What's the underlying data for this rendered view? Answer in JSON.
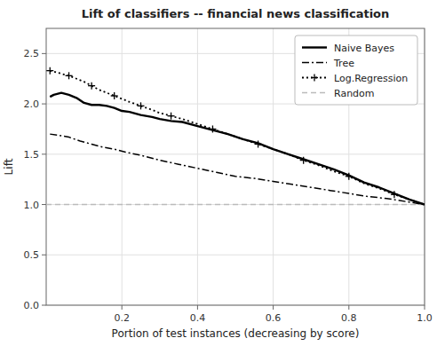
{
  "chart_data": {
    "type": "line",
    "title": "Lift of classifiers -- financial news classification",
    "xlabel": "Portion of test instances (decreasing by score)",
    "ylabel": "Lift",
    "xlim": [
      0.0,
      1.0
    ],
    "ylim": [
      0.0,
      2.75
    ],
    "xticks": [
      0.2,
      0.4,
      0.6,
      0.8,
      {
        "value": 1.0,
        "label": "1.0"
      }
    ],
    "yticks": [
      {
        "value": 0.0,
        "label": "0.0"
      },
      0.5,
      {
        "value": 1.0,
        "label": "1.0"
      },
      1.5,
      {
        "value": 2.0,
        "label": "2.0"
      },
      2.5
    ],
    "grid": true,
    "legend": "upper right",
    "series": [
      {
        "name": "Naive Bayes",
        "color": "#000000",
        "line_style": "solid",
        "x": [
          0.01,
          0.02,
          0.04,
          0.06,
          0.08,
          0.1,
          0.12,
          0.14,
          0.16,
          0.18,
          0.2,
          0.22,
          0.25,
          0.28,
          0.3,
          0.33,
          0.36,
          0.4,
          0.44,
          0.48,
          0.52,
          0.56,
          0.6,
          0.64,
          0.68,
          0.72,
          0.76,
          0.8,
          0.84,
          0.88,
          0.92,
          0.96,
          1.0
        ],
        "values": [
          2.07,
          2.09,
          2.11,
          2.09,
          2.06,
          2.01,
          1.99,
          1.99,
          1.98,
          1.96,
          1.93,
          1.92,
          1.89,
          1.87,
          1.85,
          1.83,
          1.82,
          1.78,
          1.74,
          1.7,
          1.65,
          1.61,
          1.55,
          1.5,
          1.45,
          1.4,
          1.35,
          1.29,
          1.22,
          1.17,
          1.11,
          1.05,
          1.0
        ]
      },
      {
        "name": "Tree",
        "color": "#000000",
        "line_style": "dashdot",
        "x": [
          0.01,
          0.03,
          0.06,
          0.09,
          0.12,
          0.15,
          0.18,
          0.21,
          0.25,
          0.3,
          0.35,
          0.4,
          0.45,
          0.5,
          0.55,
          0.6,
          0.65,
          0.7,
          0.75,
          0.8,
          0.85,
          0.9,
          0.95,
          1.0
        ],
        "values": [
          1.7,
          1.69,
          1.67,
          1.63,
          1.6,
          1.57,
          1.55,
          1.52,
          1.49,
          1.44,
          1.4,
          1.36,
          1.32,
          1.28,
          1.26,
          1.23,
          1.2,
          1.17,
          1.14,
          1.11,
          1.08,
          1.06,
          1.03,
          1.0
        ]
      },
      {
        "name": "Log.Regression",
        "color": "#000000",
        "line_style": "dotted",
        "marker": "plus",
        "x": [
          0.01,
          0.02,
          0.04,
          0.06,
          0.08,
          0.1,
          0.12,
          0.14,
          0.16,
          0.18,
          0.2,
          0.22,
          0.25,
          0.28,
          0.3,
          0.33,
          0.36,
          0.4,
          0.44,
          0.48,
          0.52,
          0.56,
          0.6,
          0.64,
          0.68,
          0.72,
          0.76,
          0.8,
          0.84,
          0.88,
          0.92,
          0.96,
          1.0
        ],
        "values": [
          2.33,
          2.32,
          2.3,
          2.28,
          2.25,
          2.22,
          2.18,
          2.14,
          2.11,
          2.08,
          2.05,
          2.02,
          1.98,
          1.94,
          1.91,
          1.88,
          1.85,
          1.8,
          1.75,
          1.7,
          1.65,
          1.6,
          1.55,
          1.5,
          1.44,
          1.39,
          1.33,
          1.28,
          1.21,
          1.16,
          1.1,
          1.05,
          1.0
        ]
      },
      {
        "name": "Random",
        "color": "#bbbbbb",
        "line_style": "dashed",
        "x": [
          0.0,
          1.0
        ],
        "values": [
          1.0,
          1.0
        ]
      }
    ]
  }
}
